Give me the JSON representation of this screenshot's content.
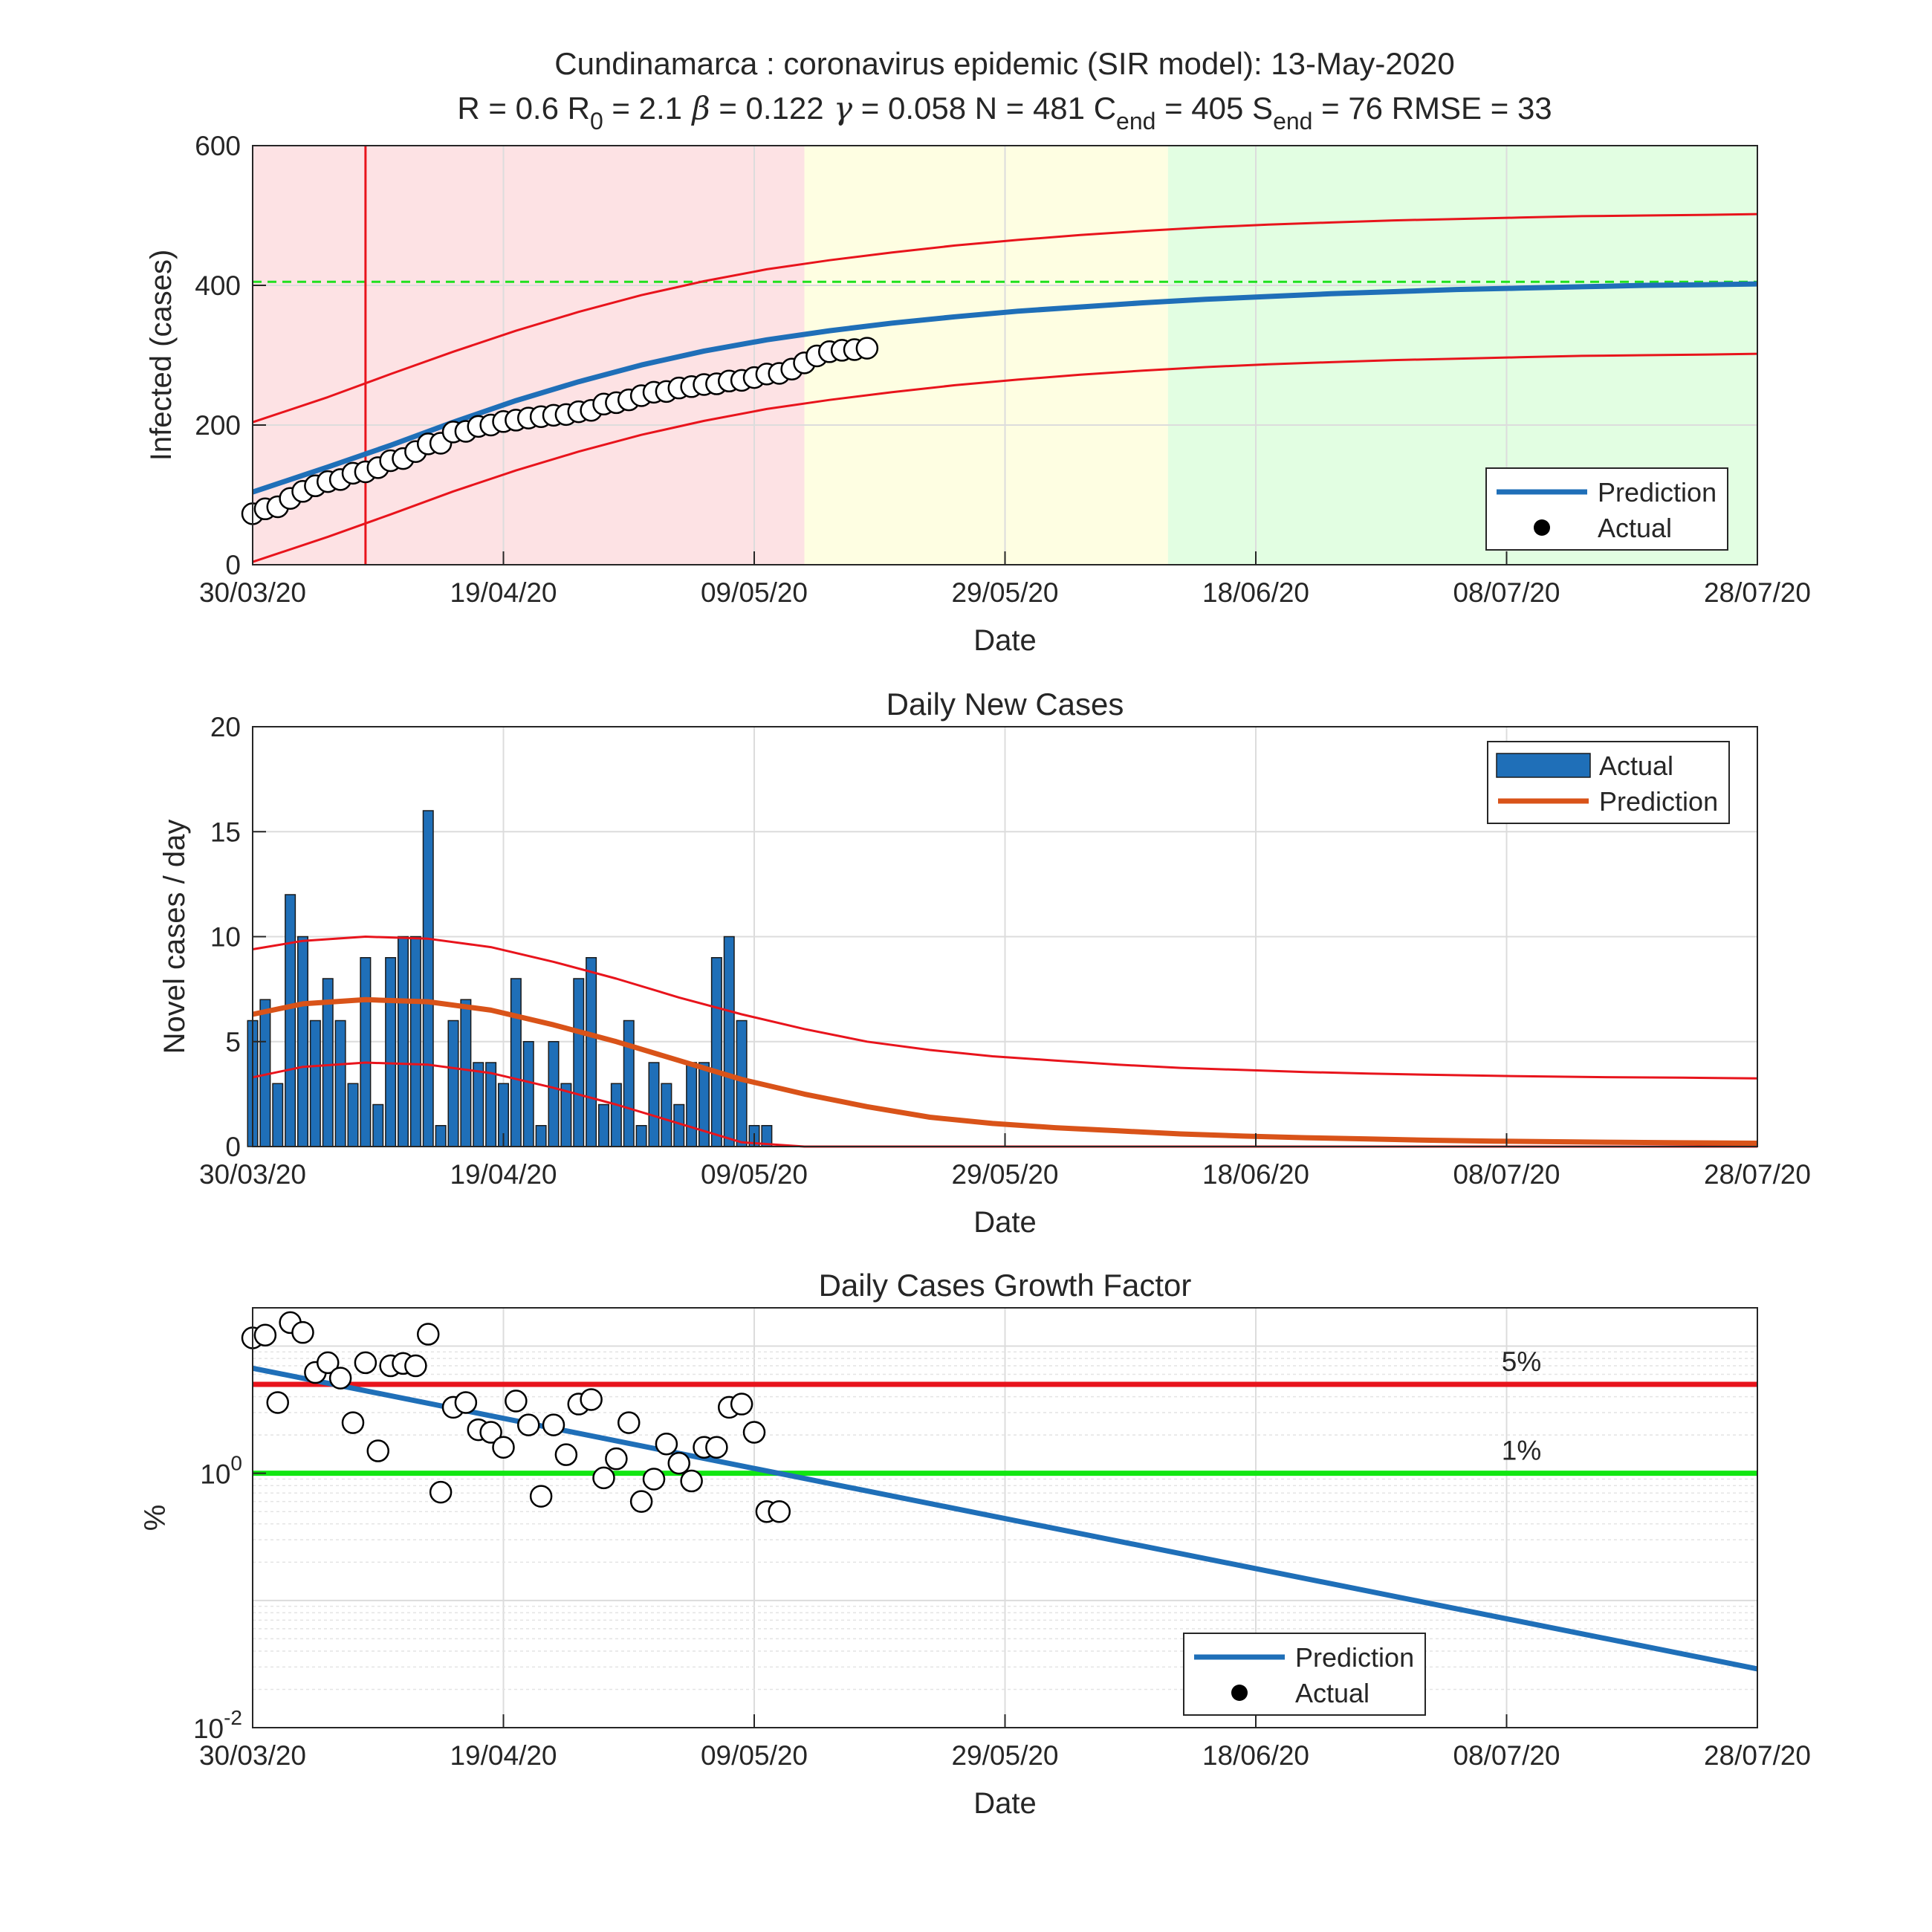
{
  "figure": {
    "title": "Cundinamarca : coronavirus epidemic (SIR model): 13-May-2020",
    "params": [
      {
        "name": "R",
        "sub": "",
        "value": "0.6"
      },
      {
        "name": "R",
        "sub": "0",
        "value": "2.1"
      },
      {
        "name": "β",
        "sub": "",
        "value": "0.122",
        "symbol": true
      },
      {
        "name": "γ",
        "sub": "",
        "value": "0.058",
        "symbol": true
      },
      {
        "name": "N",
        "sub": "",
        "value": "481"
      },
      {
        "name": "C",
        "sub": "end",
        "value": "405"
      },
      {
        "name": "S",
        "sub": "end",
        "value": "76"
      },
      {
        "name": "RMSE",
        "sub": "",
        "value": "33"
      }
    ]
  },
  "chart_data": [
    {
      "type": "line",
      "title": "",
      "xlabel": "Date",
      "ylabel": "Infected (cases)",
      "x_range": [
        "30/03/20",
        "28/07/20"
      ],
      "xticks": [
        "30/03/20",
        "19/04/20",
        "09/05/20",
        "29/05/20",
        "18/06/20",
        "08/07/20",
        "28/07/20"
      ],
      "ylim": [
        0,
        600
      ],
      "yticks": [
        "0",
        "200",
        "400",
        "600"
      ],
      "grid": true,
      "legend": {
        "placement": "bottom-right",
        "entries": [
          "Prediction",
          "Actual"
        ]
      },
      "phase_bands": [
        {
          "from": "30/03/20",
          "to": "13/05/20",
          "color": "#fde2e4"
        },
        {
          "from": "13/05/20",
          "to": "11/06/20",
          "color": "#fefee2"
        },
        {
          "from": "11/06/20",
          "to": "28/07/20",
          "color": "#e2fee2"
        }
      ],
      "vertical_marker": {
        "x": "08/04/20",
        "color": "#e8141c"
      },
      "c_end_line": {
        "y": 405,
        "color": "#1fe01f"
      },
      "series": [
        {
          "name": "Prediction",
          "color": "#1f6fb8",
          "x": [
            "30/03/20",
            "05/04/20",
            "10/04/20",
            "15/04/20",
            "20/04/20",
            "25/04/20",
            "30/04/20",
            "05/05/20",
            "10/05/20",
            "15/05/20",
            "20/05/20",
            "25/05/20",
            "30/05/20",
            "04/06/20",
            "09/06/20",
            "14/06/20",
            "19/06/20",
            "24/06/20",
            "29/06/20",
            "04/07/20",
            "09/07/20",
            "14/07/20",
            "19/07/20",
            "24/07/20",
            "28/07/20"
          ],
          "y": [
            104,
            140,
            171,
            204,
            235,
            262,
            286,
            306,
            322,
            335,
            346,
            355,
            363,
            369,
            375,
            380,
            384,
            388,
            391,
            394,
            396,
            398,
            400,
            401,
            402
          ]
        },
        {
          "name": "",
          "role": "upper bound",
          "color": "#e8141c",
          "x": [
            "30/03/20",
            "05/04/20",
            "10/04/20",
            "15/04/20",
            "20/04/20",
            "25/04/20",
            "30/04/20",
            "05/05/20",
            "10/05/20",
            "15/05/20",
            "20/05/20",
            "25/05/20",
            "30/05/20",
            "04/06/20",
            "09/06/20",
            "14/06/20",
            "19/06/20",
            "24/06/20",
            "29/06/20",
            "04/07/20",
            "09/07/20",
            "14/07/20",
            "19/07/20",
            "24/07/20",
            "28/07/20"
          ],
          "y": [
            204,
            240,
            273,
            305,
            335,
            362,
            386,
            406,
            423,
            436,
            447,
            457,
            465,
            472,
            478,
            483,
            487,
            490,
            493,
            495,
            497,
            499,
            500,
            501,
            502
          ]
        },
        {
          "name": "",
          "role": "lower bound",
          "color": "#e8141c",
          "x": [
            "30/03/20",
            "05/04/20",
            "10/04/20",
            "15/04/20",
            "20/04/20",
            "25/04/20",
            "30/04/20",
            "05/05/20",
            "10/05/20",
            "15/05/20",
            "20/05/20",
            "25/05/20",
            "30/05/20",
            "04/06/20",
            "09/06/20",
            "14/06/20",
            "19/06/20",
            "24/06/20",
            "29/06/20",
            "04/07/20",
            "09/07/20",
            "14/07/20",
            "19/07/20",
            "24/07/20",
            "28/07/20"
          ],
          "y": [
            4,
            40,
            72,
            105,
            135,
            162,
            186,
            206,
            223,
            236,
            247,
            257,
            265,
            272,
            278,
            283,
            287,
            290,
            293,
            295,
            297,
            299,
            300,
            301,
            302
          ]
        },
        {
          "name": "Actual",
          "type": "scatter",
          "start": "30/03/20",
          "step_days": 1,
          "y": [
            73,
            80,
            83,
            95,
            105,
            113,
            119,
            122,
            131,
            133,
            139,
            149,
            152,
            162,
            173,
            174,
            190,
            191,
            198,
            200,
            205,
            207,
            210,
            212,
            214,
            215,
            219,
            221,
            230,
            232,
            236,
            242,
            247,
            248,
            253,
            255,
            258,
            259,
            263,
            264,
            268,
            273,
            274,
            280,
            289,
            299,
            305,
            307,
            308,
            310
          ]
        }
      ]
    },
    {
      "type": "bar",
      "title": "Daily New Cases",
      "xlabel": "Date",
      "ylabel": "Novel cases / day",
      "x_range": [
        "30/03/20",
        "28/07/20"
      ],
      "xticks": [
        "30/03/20",
        "19/04/20",
        "09/05/20",
        "29/05/20",
        "18/06/20",
        "08/07/20",
        "28/07/20"
      ],
      "ylim": [
        0,
        20
      ],
      "yticks": [
        "0",
        "5",
        "10",
        "15",
        "20"
      ],
      "grid": true,
      "legend": {
        "placement": "top-right",
        "entries": [
          "Actual",
          "Prediction"
        ]
      },
      "series": [
        {
          "name": "Actual",
          "type": "bar",
          "color": "#1f6fb8",
          "start": "30/03/20",
          "step_days": 1,
          "values": [
            6,
            7,
            3,
            12,
            10,
            6,
            8,
            6,
            3,
            9,
            2,
            9,
            10,
            10,
            16,
            1,
            6,
            7,
            4,
            4,
            3,
            8,
            5,
            1,
            5,
            3,
            8,
            9,
            2,
            3,
            6,
            1,
            4,
            3,
            2,
            4,
            4,
            9,
            10,
            6,
            1,
            1
          ]
        },
        {
          "name": "Prediction",
          "color": "#d95319",
          "x": [
            "30/03/20",
            "03/04/20",
            "08/04/20",
            "13/04/20",
            "18/04/20",
            "23/04/20",
            "28/04/20",
            "03/05/20",
            "08/05/20",
            "13/05/20",
            "18/05/20",
            "23/05/20",
            "28/05/20",
            "02/06/20",
            "07/06/20",
            "12/06/20",
            "17/06/20",
            "22/06/20",
            "27/06/20",
            "02/07/20",
            "07/07/20",
            "12/07/20",
            "17/07/20",
            "22/07/20",
            "28/07/20"
          ],
          "y": [
            6.3,
            6.8,
            7.0,
            6.9,
            6.5,
            5.8,
            5.0,
            4.1,
            3.2,
            2.5,
            1.9,
            1.4,
            1.1,
            0.9,
            0.75,
            0.6,
            0.5,
            0.42,
            0.36,
            0.3,
            0.26,
            0.23,
            0.2,
            0.18,
            0.16
          ]
        },
        {
          "name": "",
          "role": "upper bound",
          "color": "#e8141c",
          "x": [
            "30/03/20",
            "03/04/20",
            "08/04/20",
            "13/04/20",
            "18/04/20",
            "23/04/20",
            "28/04/20",
            "03/05/20",
            "08/05/20",
            "13/05/20",
            "18/05/20",
            "23/05/20",
            "28/05/20",
            "02/06/20",
            "07/06/20",
            "12/06/20",
            "17/06/20",
            "22/06/20",
            "27/06/20",
            "02/07/20",
            "07/07/20",
            "12/07/20",
            "17/07/20",
            "22/07/20",
            "28/07/20"
          ],
          "y": [
            9.4,
            9.8,
            10.0,
            9.9,
            9.5,
            8.8,
            8.0,
            7.1,
            6.3,
            5.6,
            5.0,
            4.6,
            4.3,
            4.1,
            3.9,
            3.75,
            3.65,
            3.55,
            3.48,
            3.42,
            3.37,
            3.33,
            3.3,
            3.28,
            3.25
          ]
        },
        {
          "name": "",
          "role": "lower bound",
          "color": "#e8141c",
          "x": [
            "30/03/20",
            "03/04/20",
            "08/04/20",
            "13/04/20",
            "18/04/20",
            "23/04/20",
            "28/04/20",
            "03/05/20",
            "08/05/20",
            "13/05/20",
            "18/05/20",
            "23/05/20",
            "28/05/20",
            "02/06/20",
            "07/06/20",
            "12/06/20",
            "17/06/20",
            "22/06/20",
            "27/06/20",
            "02/07/20",
            "07/07/20",
            "12/07/20",
            "17/07/20",
            "22/07/20",
            "28/07/20"
          ],
          "y": [
            3.3,
            3.8,
            4.0,
            3.9,
            3.5,
            2.8,
            2.0,
            1.1,
            0.2,
            0,
            0,
            0,
            0,
            0,
            0,
            0,
            0,
            0,
            0,
            0,
            0,
            0,
            0,
            0,
            0
          ]
        }
      ]
    },
    {
      "type": "scatter",
      "title": "Daily Cases Growth Factor",
      "xlabel": "Date",
      "ylabel": "%",
      "x_range": [
        "30/03/20",
        "28/07/20"
      ],
      "xticks": [
        "30/03/20",
        "19/04/20",
        "09/05/20",
        "29/05/20",
        "18/06/20",
        "08/07/20",
        "28/07/20"
      ],
      "y_scale": "log",
      "ylim": [
        0.01,
        20
      ],
      "yticks": [
        {
          "base": "10",
          "exp": "0",
          "value": 1
        },
        {
          "base": "10",
          "exp": "-2",
          "value": 0.01
        }
      ],
      "grid": true,
      "legend": {
        "placement": "bottom-right",
        "entries": [
          "Prediction",
          "Actual"
        ]
      },
      "reference_lines": [
        {
          "y": 5,
          "label": "5%",
          "color": "#e8141c"
        },
        {
          "y": 1,
          "label": "1%",
          "color": "#11e611"
        }
      ],
      "series": [
        {
          "name": "Prediction",
          "color": "#1f6fb8",
          "x": [
            "30/03/20",
            "28/07/20"
          ],
          "y": [
            6.7,
            0.029
          ]
        },
        {
          "name": "Actual",
          "type": "scatter",
          "x": [
            "30/03/20",
            "31/03/20",
            "01/04/20",
            "02/04/20",
            "03/04/20",
            "04/04/20",
            "05/04/20",
            "06/04/20",
            "07/04/20",
            "08/04/20",
            "09/04/20",
            "10/04/20",
            "11/04/20",
            "12/04/20",
            "13/04/20",
            "14/04/20",
            "15/04/20",
            "16/04/20",
            "17/04/20",
            "18/04/20",
            "19/04/20",
            "20/04/20",
            "21/04/20",
            "22/04/20",
            "23/04/20",
            "24/04/20",
            "25/04/20",
            "26/04/20",
            "27/04/20",
            "28/04/20",
            "29/04/20",
            "30/04/20",
            "01/05/20",
            "02/05/20",
            "03/05/20",
            "04/05/20",
            "05/05/20",
            "06/05/20",
            "07/05/20",
            "08/05/20",
            "09/05/20",
            "10/05/20",
            "11/05/20"
          ],
          "y": [
            11.6,
            12.2,
            3.6,
            15.3,
            12.8,
            6.2,
            7.4,
            5.6,
            2.5,
            7.4,
            1.5,
            7.0,
            7.3,
            7.0,
            12.4,
            0.71,
            3.3,
            3.6,
            2.2,
            2.1,
            1.6,
            3.7,
            2.4,
            0.66,
            2.4,
            1.4,
            3.5,
            3.8,
            0.92,
            1.3,
            2.5,
            0.6,
            0.9,
            1.7,
            1.2,
            0.87,
            1.6,
            1.6,
            3.3,
            3.5,
            2.1,
            0.5,
            0.5
          ]
        }
      ]
    }
  ]
}
